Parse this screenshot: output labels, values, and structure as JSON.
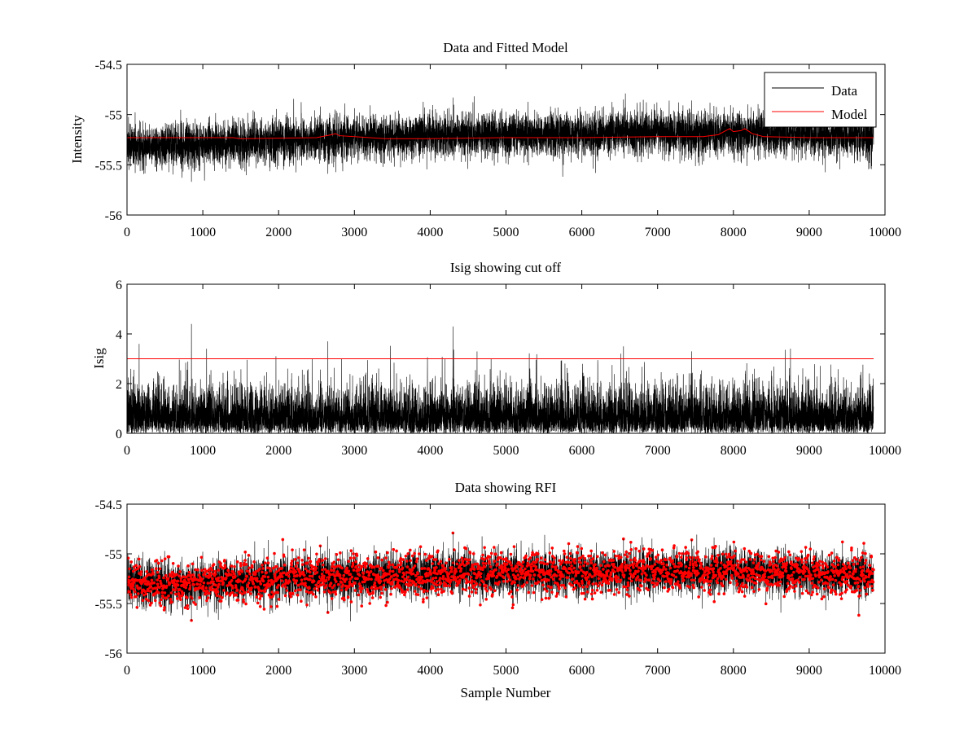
{
  "chart_data": [
    {
      "type": "line",
      "title": "Data and Fitted Model",
      "xlabel": "",
      "ylabel": "Intensity",
      "xlim": [
        0,
        10000
      ],
      "ylim": [
        -56,
        -54.5
      ],
      "xticks": [
        0,
        1000,
        2000,
        3000,
        4000,
        5000,
        6000,
        7000,
        8000,
        9000,
        10000
      ],
      "yticks": [
        -56,
        -55.5,
        -55,
        -54.5
      ],
      "xtick_labels": [
        "0",
        "1000",
        "2000",
        "3000",
        "4000",
        "5000",
        "6000",
        "7000",
        "8000",
        "9000",
        "10000"
      ],
      "ytick_labels": [
        "-56",
        "-55.5",
        "-55",
        "-54.5"
      ],
      "grid": false,
      "legend_position": "top-right",
      "series": [
        {
          "name": "Data",
          "color": "#000000",
          "style": "noisy-band",
          "n_samples": 9850,
          "center": [
            [
              0,
              -55.31
            ],
            [
              1000,
              -55.3
            ],
            [
              2000,
              -55.26
            ],
            [
              3000,
              -55.23
            ],
            [
              4000,
              -55.21
            ],
            [
              5000,
              -55.2
            ],
            [
              6000,
              -55.19
            ],
            [
              7000,
              -55.18
            ],
            [
              8000,
              -55.18
            ],
            [
              9000,
              -55.2
            ],
            [
              9850,
              -55.22
            ]
          ],
          "spread": 0.11,
          "extremes": [
            [
              850,
              -55.67
            ],
            [
              2550,
              -54.92
            ],
            [
              4300,
              -54.83
            ],
            [
              6550,
              -54.85
            ],
            [
              7450,
              -54.86
            ],
            [
              7550,
              -55.51
            ],
            [
              2650,
              -55.59
            ]
          ]
        },
        {
          "name": "Model",
          "color": "#ff0000",
          "points": [
            [
              0,
              -55.23
            ],
            [
              1400,
              -55.23
            ],
            [
              1500,
              -55.24
            ],
            [
              2500,
              -55.23
            ],
            [
              2700,
              -55.2
            ],
            [
              2750,
              -55.19
            ],
            [
              2800,
              -55.21
            ],
            [
              3000,
              -55.22
            ],
            [
              3200,
              -55.23
            ],
            [
              3400,
              -55.24
            ],
            [
              4000,
              -55.24
            ],
            [
              5000,
              -55.23
            ],
            [
              6000,
              -55.23
            ],
            [
              7000,
              -55.22
            ],
            [
              7600,
              -55.22
            ],
            [
              7800,
              -55.2
            ],
            [
              7900,
              -55.16
            ],
            [
              7950,
              -55.14
            ],
            [
              8000,
              -55.17
            ],
            [
              8100,
              -55.16
            ],
            [
              8150,
              -55.14
            ],
            [
              8250,
              -55.19
            ],
            [
              8400,
              -55.22
            ],
            [
              9000,
              -55.23
            ],
            [
              9850,
              -55.23
            ]
          ]
        }
      ]
    },
    {
      "type": "line",
      "title": "Isig showing cut off",
      "xlabel": "",
      "ylabel": "Isig",
      "xlim": [
        0,
        10000
      ],
      "ylim": [
        0,
        6
      ],
      "xticks": [
        0,
        1000,
        2000,
        3000,
        4000,
        5000,
        6000,
        7000,
        8000,
        9000,
        10000
      ],
      "yticks": [
        0,
        2,
        4,
        6
      ],
      "xtick_labels": [
        "0",
        "1000",
        "2000",
        "3000",
        "4000",
        "5000",
        "6000",
        "7000",
        "8000",
        "9000",
        "10000"
      ],
      "ytick_labels": [
        "0",
        "2",
        "4",
        "6"
      ],
      "grid": false,
      "series": [
        {
          "color": "#000000",
          "style": "half-normal-noise",
          "n_samples": 9850,
          "scale": 0.9,
          "extremes": [
            [
              850,
              4.4
            ],
            [
              4300,
              4.3
            ],
            [
              2650,
              3.7
            ],
            [
              6550,
              3.5
            ],
            [
              7450,
              3.3
            ],
            [
              160,
              3.6
            ],
            [
              1050,
              3.4
            ]
          ]
        },
        {
          "color": "#ff0000",
          "points": [
            [
              0,
              3
            ],
            [
              9850,
              3
            ]
          ]
        }
      ]
    },
    {
      "type": "scatter",
      "title": "Data showing RFI",
      "xlabel": "Sample Number",
      "ylabel": "",
      "xlim": [
        0,
        10000
      ],
      "ylim": [
        -56,
        -54.5
      ],
      "xticks": [
        0,
        1000,
        2000,
        3000,
        4000,
        5000,
        6000,
        7000,
        8000,
        9000,
        10000
      ],
      "yticks": [
        -56,
        -55.5,
        -55,
        -54.5
      ],
      "xtick_labels": [
        "0",
        "1000",
        "2000",
        "3000",
        "4000",
        "5000",
        "6000",
        "7000",
        "8000",
        "9000",
        "10000"
      ],
      "ytick_labels": [
        "-56",
        "-55.5",
        "-55",
        "-54.5"
      ],
      "grid": false,
      "series": [
        {
          "color": "#000000",
          "style": "noisy-band",
          "n_samples": 9850,
          "center": [
            [
              0,
              -55.31
            ],
            [
              1000,
              -55.3
            ],
            [
              2000,
              -55.26
            ],
            [
              3000,
              -55.23
            ],
            [
              4000,
              -55.21
            ],
            [
              5000,
              -55.2
            ],
            [
              6000,
              -55.19
            ],
            [
              7000,
              -55.18
            ],
            [
              8000,
              -55.18
            ],
            [
              9000,
              -55.2
            ],
            [
              9850,
              -55.22
            ]
          ],
          "spread": 0.11
        },
        {
          "color": "#ff0000",
          "marker": "dot",
          "style": "flagged-points",
          "n_points": 2600,
          "extremes": [
            [
              850,
              -55.67
            ],
            [
              2550,
              -54.92
            ],
            [
              4300,
              -54.79
            ],
            [
              6550,
              -54.85
            ],
            [
              7450,
              -54.86
            ],
            [
              2650,
              -55.59
            ]
          ]
        }
      ]
    }
  ]
}
